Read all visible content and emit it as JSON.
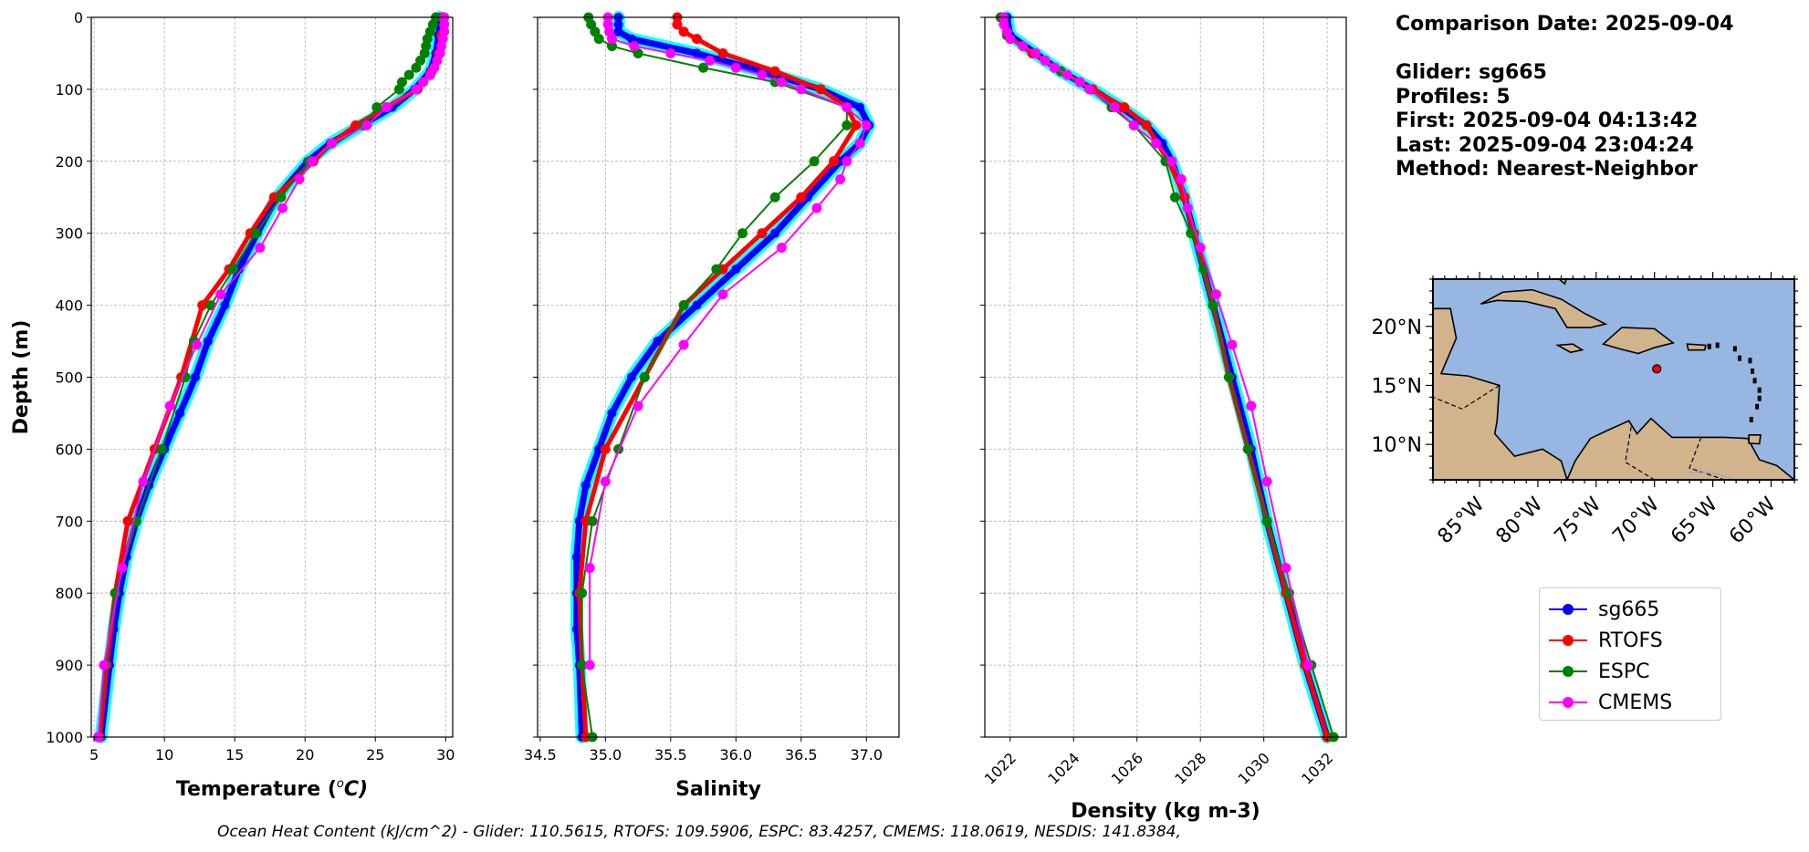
{
  "info": {
    "comparison_date": "Comparison Date: 2025-09-04",
    "glider": "Glider: sg665",
    "profiles": "Profiles: 5",
    "first": "First: 2025-09-04 04:13:42",
    "last": "Last: 2025-09-04 23:04:24",
    "method": "Method: Nearest-Neighbor"
  },
  "footer": "Ocean Heat Content (kJ/cm^2) - Glider: 110.5615,  RTOFS: 109.5906,  ESPC: 83.4257,  CMEMS: 118.0619,  NESDIS: 141.8384,",
  "legend": [
    {
      "name": "sg665",
      "color": "#0000ff"
    },
    {
      "name": "RTOFS",
      "color": "#ff0000"
    },
    {
      "name": "ESPC",
      "color": "#008000"
    },
    {
      "name": "CMEMS",
      "color": "#ff00ff"
    }
  ],
  "map": {
    "lat_labels": [
      "20°N",
      "15°N",
      "10°N"
    ],
    "lat_values": [
      20,
      15,
      10
    ],
    "lon_labels": [
      "85°W",
      "80°W",
      "75°W",
      "70°W",
      "65°W",
      "60°W"
    ],
    "lon_values": [
      -85,
      -80,
      -75,
      -70,
      -65,
      -60
    ],
    "extent": {
      "lon": [
        -89,
        -58
      ],
      "lat": [
        7,
        24
      ]
    },
    "glider_position": {
      "lon": -69.8,
      "lat": 16.4
    },
    "ocean_color": "#97b6e1",
    "land_color": "#d2b48c"
  },
  "chart_data": [
    {
      "type": "line",
      "name": "temperature",
      "xlabel": "Temperature (°C)",
      "xlabel_main": "Temperature (",
      "xlabel_unit": "o",
      "xlabel_unit2": "C)",
      "ylabel": "Depth (m)",
      "xlim": [
        4.8,
        30.5
      ],
      "ylim": [
        1000,
        0
      ],
      "xticks": [
        5,
        10,
        15,
        20,
        25,
        30
      ],
      "yticks": [
        0,
        100,
        200,
        300,
        400,
        500,
        600,
        700,
        800,
        900,
        1000
      ],
      "series": [
        {
          "name": "sg665",
          "color": "#0000ff",
          "depth": [
            0,
            25,
            50,
            75,
            100,
            125,
            150,
            175,
            200,
            250,
            300,
            350,
            400,
            450,
            500,
            550,
            600,
            650,
            700,
            750,
            800,
            850,
            900,
            1000
          ],
          "values": [
            29.6,
            29.5,
            29.3,
            28.9,
            27.8,
            26.2,
            24.0,
            21.8,
            20.2,
            18.0,
            16.6,
            15.3,
            14.3,
            13.1,
            12.2,
            11.1,
            10.0,
            8.9,
            8.0,
            7.3,
            6.8,
            6.4,
            6.1,
            5.5
          ]
        },
        {
          "name": "RTOFS",
          "color": "#ff0000",
          "depth": [
            0,
            25,
            50,
            75,
            100,
            125,
            150,
            175,
            200,
            250,
            300,
            350,
            400,
            500,
            600,
            700,
            800,
            900,
            1000
          ],
          "values": [
            29.8,
            29.7,
            29.5,
            29.0,
            28.0,
            25.8,
            23.6,
            21.9,
            20.6,
            17.8,
            16.1,
            14.6,
            12.7,
            11.2,
            9.3,
            7.4,
            6.5,
            5.9,
            5.4
          ]
        },
        {
          "name": "ESPC",
          "color": "#008000",
          "depth": [
            0,
            10,
            20,
            30,
            40,
            50,
            60,
            70,
            80,
            90,
            100,
            125,
            150,
            200,
            250,
            300,
            350,
            400,
            450,
            500,
            600,
            700,
            800,
            900,
            1000
          ],
          "values": [
            29.3,
            29.1,
            28.9,
            28.7,
            28.6,
            28.5,
            28.2,
            27.9,
            27.4,
            26.9,
            26.7,
            25.1,
            24.2,
            20.3,
            18.3,
            16.5,
            14.9,
            13.3,
            12.1,
            11.5,
            9.8,
            8.0,
            6.5,
            5.8,
            5.3
          ]
        },
        {
          "name": "CMEMS",
          "color": "#ff00ff",
          "depth": [
            0,
            10,
            20,
            30,
            40,
            50,
            60,
            70,
            80,
            90,
            100,
            125,
            150,
            175,
            200,
            225,
            265,
            320,
            385,
            455,
            540,
            645,
            765,
            900,
            1000
          ],
          "values": [
            29.9,
            29.9,
            29.9,
            29.8,
            29.7,
            29.6,
            29.4,
            29.2,
            28.9,
            28.4,
            27.9,
            25.8,
            24.4,
            21.9,
            20.5,
            19.6,
            18.4,
            16.8,
            14.0,
            12.3,
            10.4,
            8.5,
            7.0,
            5.7,
            5.3
          ]
        }
      ]
    },
    {
      "type": "line",
      "name": "salinity",
      "xlabel": "Salinity",
      "ylabel": "",
      "xlim": [
        34.48,
        37.25
      ],
      "ylim": [
        1000,
        0
      ],
      "xticks": [
        34.5,
        35.0,
        35.5,
        36.0,
        36.5,
        37.0
      ],
      "xtick_labels": [
        "34.5",
        "35.0",
        "35.5",
        "36.0",
        "36.5",
        "37.0"
      ],
      "series": [
        {
          "name": "sg665",
          "color": "#0000ff",
          "depth": [
            0,
            10,
            20,
            30,
            50,
            75,
            100,
            125,
            150,
            175,
            200,
            250,
            300,
            350,
            400,
            450,
            500,
            550,
            600,
            650,
            700,
            750,
            800,
            850,
            900,
            1000
          ],
          "values": [
            35.1,
            35.1,
            35.1,
            35.2,
            35.7,
            36.2,
            36.65,
            36.95,
            37.02,
            36.95,
            36.8,
            36.55,
            36.3,
            36.0,
            35.7,
            35.4,
            35.2,
            35.05,
            34.95,
            34.85,
            34.8,
            34.78,
            34.78,
            34.78,
            34.8,
            34.82
          ]
        },
        {
          "name": "RTOFS",
          "color": "#ff0000",
          "depth": [
            0,
            10,
            20,
            30,
            50,
            75,
            100,
            125,
            150,
            200,
            250,
            300,
            350,
            400,
            500,
            600,
            700,
            800,
            900,
            1000
          ],
          "values": [
            35.55,
            35.55,
            35.6,
            35.7,
            35.9,
            36.3,
            36.65,
            36.85,
            36.92,
            36.75,
            36.5,
            36.2,
            35.9,
            35.6,
            35.3,
            35.0,
            34.85,
            34.8,
            34.82,
            34.85
          ]
        },
        {
          "name": "ESPC",
          "color": "#008000",
          "depth": [
            0,
            10,
            20,
            30,
            40,
            50,
            70,
            90,
            125,
            150,
            200,
            250,
            300,
            350,
            400,
            500,
            600,
            700,
            800,
            900,
            1000
          ],
          "values": [
            34.87,
            34.89,
            34.92,
            34.95,
            35.05,
            35.25,
            35.75,
            36.3,
            36.85,
            36.85,
            36.6,
            36.3,
            36.05,
            35.85,
            35.6,
            35.3,
            35.1,
            34.9,
            34.82,
            34.82,
            34.9
          ]
        },
        {
          "name": "CMEMS",
          "color": "#ff00ff",
          "depth": [
            0,
            10,
            20,
            30,
            40,
            50,
            60,
            70,
            80,
            90,
            100,
            125,
            150,
            175,
            200,
            225,
            265,
            320,
            385,
            455,
            540,
            645,
            765,
            900
          ],
          "values": [
            35.02,
            35.02,
            35.03,
            35.05,
            35.22,
            35.5,
            35.8,
            36.0,
            36.2,
            36.35,
            36.5,
            36.85,
            37.0,
            36.95,
            36.85,
            36.8,
            36.62,
            36.35,
            35.9,
            35.6,
            35.25,
            35.0,
            34.88,
            34.88
          ]
        }
      ]
    },
    {
      "type": "line",
      "name": "density",
      "xlabel": "Density (kg m-3)",
      "ylabel": "",
      "xlim": [
        1021.2,
        1032.6
      ],
      "ylim": [
        1000,
        0
      ],
      "xticks": [
        1022,
        1024,
        1026,
        1028,
        1030,
        1032
      ],
      "series": [
        {
          "name": "sg665",
          "color": "#0000ff",
          "depth": [
            0,
            25,
            50,
            75,
            100,
            125,
            150,
            175,
            200,
            250,
            300,
            400,
            500,
            600,
            700,
            800,
            900,
            1000
          ],
          "values": [
            1021.9,
            1022.0,
            1022.8,
            1023.6,
            1024.6,
            1025.5,
            1026.3,
            1026.8,
            1027.1,
            1027.5,
            1027.8,
            1028.4,
            1029.0,
            1029.6,
            1030.1,
            1030.7,
            1031.3,
            1032.0
          ]
        },
        {
          "name": "RTOFS",
          "color": "#ff0000",
          "depth": [
            0,
            25,
            50,
            75,
            100,
            125,
            150,
            200,
            250,
            300,
            400,
            500,
            600,
            700,
            800,
            900,
            1000
          ],
          "values": [
            1021.7,
            1021.9,
            1022.7,
            1023.6,
            1024.6,
            1025.6,
            1026.3,
            1027.0,
            1027.5,
            1027.8,
            1028.4,
            1028.9,
            1029.5,
            1030.1,
            1030.7,
            1031.3,
            1032.0
          ]
        },
        {
          "name": "ESPC",
          "color": "#008000",
          "depth": [
            0,
            25,
            50,
            75,
            100,
            125,
            150,
            200,
            250,
            300,
            350,
            400,
            500,
            600,
            700,
            800,
            900,
            1000
          ],
          "values": [
            1021.7,
            1021.9,
            1022.8,
            1023.6,
            1024.5,
            1025.2,
            1025.9,
            1026.9,
            1027.2,
            1027.7,
            1028.1,
            1028.4,
            1028.9,
            1029.5,
            1030.1,
            1030.8,
            1031.5,
            1032.2
          ]
        },
        {
          "name": "CMEMS",
          "color": "#ff00ff",
          "depth": [
            0,
            10,
            20,
            30,
            40,
            50,
            60,
            70,
            80,
            90,
            100,
            125,
            150,
            175,
            200,
            225,
            265,
            320,
            385,
            455,
            540,
            645,
            765,
            900
          ],
          "values": [
            1021.8,
            1021.8,
            1021.9,
            1022.0,
            1022.4,
            1022.8,
            1023.1,
            1023.4,
            1023.8,
            1024.2,
            1024.5,
            1025.3,
            1025.9,
            1026.6,
            1027.1,
            1027.4,
            1027.6,
            1028.0,
            1028.5,
            1029.0,
            1029.6,
            1030.1,
            1030.7,
            1031.4
          ]
        }
      ]
    }
  ]
}
